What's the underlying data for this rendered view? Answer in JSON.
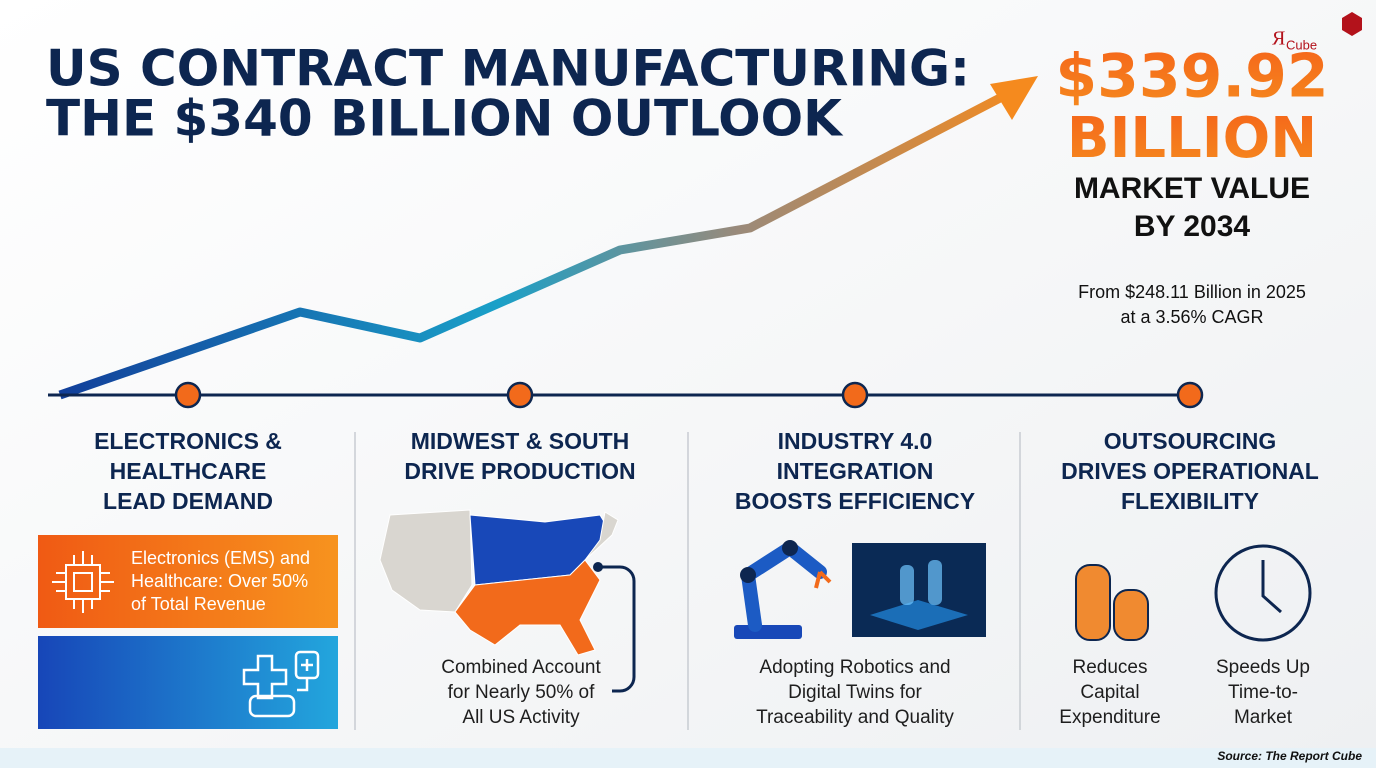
{
  "header": {
    "title": [
      "US CONTRACT MANUFACTURING:",
      "THE $340 BILLION OUTLOOK"
    ]
  },
  "logo": {
    "mark": "Я",
    "text": "Cube"
  },
  "highlight": {
    "value": "$339.92",
    "unit": "BILLION",
    "caption": [
      "MARKET VALUE",
      "BY 2034"
    ],
    "note": [
      "From $248.11 Billion in 2025",
      "at a 3.56% CAGR"
    ]
  },
  "sections": [
    {
      "title": [
        "ELECTRONICS &",
        "HEALTHCARE",
        "LEAD DEMAND"
      ],
      "text": [
        "Electronics (EMS) and",
        "Healthcare: Over 50%",
        "of Total Revenue"
      ]
    },
    {
      "title": [
        "MIDWEST & SOUTH",
        "DRIVE PRODUCTION"
      ],
      "text": [
        "Combined Account",
        "for Nearly 50% of",
        "All US Activity"
      ]
    },
    {
      "title": [
        "INDUSTRY 4.0",
        "INTEGRATION",
        "BOOSTS EFFICIENCY"
      ],
      "text": [
        "Adopting Robotics and",
        "Digital Twins for",
        "Traceability and Quality"
      ]
    },
    {
      "title": [
        "OUTSOURCING",
        "DRIVES OPERATIONAL",
        "FLEXIBILITY"
      ],
      "items": [
        {
          "label": [
            "Reduces",
            "Capital",
            "Expenditure"
          ]
        },
        {
          "label": [
            "Speeds Up",
            "Time-to-",
            "Market"
          ]
        }
      ]
    }
  ],
  "footer": {
    "source": "Source: The Report Cube"
  }
}
